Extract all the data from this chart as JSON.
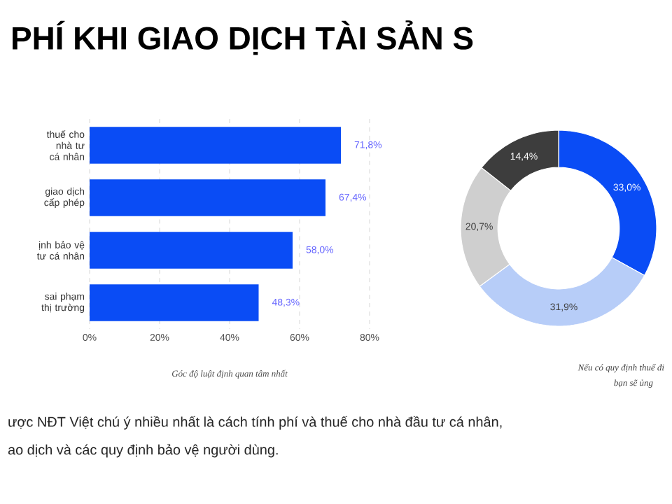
{
  "chart_data": [
    {
      "type": "bar",
      "orientation": "horizontal",
      "title": "PHÍ KHI GIAO DỊCH TÀI SẢN S",
      "xlabel": "Góc độ luật định quan tâm nhất",
      "categories": [
        "thuế cho nhà tư cá nhân",
        "giao dịch cấp phép",
        "ịnh bảo vệ tư cá nhân",
        "sai phạm thị trường"
      ],
      "values": [
        71.8,
        67.4,
        58.0,
        48.3
      ],
      "value_labels": [
        "71,8%",
        "67,4%",
        "58,0%",
        "48,3%"
      ],
      "color": "#0a4cf5",
      "xlim": [
        0,
        80
      ],
      "xticks": [
        {
          "value": 0,
          "label": "0%"
        },
        {
          "value": 20,
          "label": "20%"
        },
        {
          "value": 40,
          "label": "40%"
        },
        {
          "value": 60,
          "label": "60%"
        },
        {
          "value": 80,
          "label": "80%"
        }
      ],
      "grid": "x",
      "annotations": [
        "ược NĐT Việt chú ý nhiều nhất là cách tính phí và thuế cho nhà đầu tư cá nhân,",
        "ao dịch và các quy định bảo vệ người dùng."
      ]
    },
    {
      "type": "donut",
      "categories": [
        null,
        null,
        null,
        null
      ],
      "values": [
        33.0,
        31.9,
        20.7,
        14.4
      ],
      "value_labels": [
        "33,0%",
        "31,9%",
        "20,7%",
        "14,4%"
      ],
      "colors": [
        "#0a4cf5",
        "#b7cdf8",
        "#cfcfcf",
        "#3d3d3d"
      ],
      "annotations": [
        "Nếu có quy định thuế đi",
        "bạn sẽ ủng"
      ]
    }
  ]
}
